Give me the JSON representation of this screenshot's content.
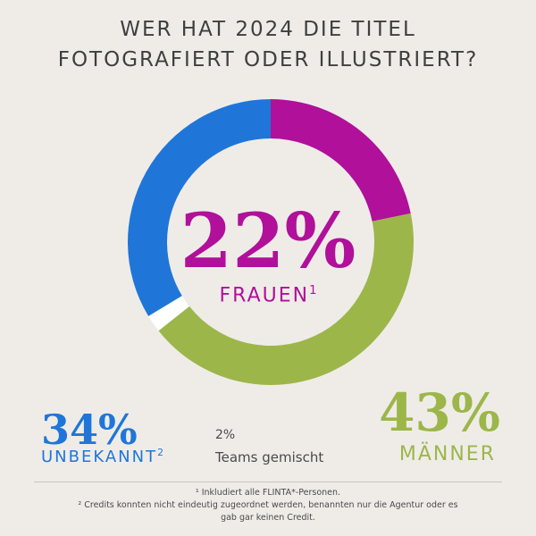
{
  "title": {
    "line1": "WER HAT 2024 DIE TITEL",
    "line2": "FOTOGRAFIERT ODER ILLUSTRIERT?"
  },
  "chart_data": {
    "type": "pie",
    "variant": "donut",
    "title": "WER HAT 2024 DIE TITEL FOTOGRAFIERT ODER ILLUSTRIERT?",
    "series": [
      {
        "name": "Frauen",
        "value": 22,
        "color": "#b0109a"
      },
      {
        "name": "Männer",
        "value": 43,
        "color": "#9cb64a"
      },
      {
        "name": "Teams gemischt",
        "value": 2,
        "color": "#ffffff"
      },
      {
        "name": "Unbekannt",
        "value": 34,
        "color": "#1f76d8"
      }
    ]
  },
  "labels": {
    "frauen_pct": "22%",
    "frauen_label": "FRAUEN",
    "frauen_sup": "1",
    "unbekannt_pct": "34%",
    "unbekannt_label": "UNBEKANNT",
    "unbekannt_sup": "2",
    "teams_pct": "2%",
    "teams_label": "Teams gemischt",
    "maenner_pct": "43%",
    "maenner_label": "MÄNNER"
  },
  "footnotes": {
    "note1": "¹  Inkludiert alle FLINTA*-Personen.",
    "note2_line1": "² Credits konnten nicht eindeutig zugeordnet werden, benannten nur die Agentur oder es",
    "note2_line2": "gab gar keinen Credit."
  }
}
